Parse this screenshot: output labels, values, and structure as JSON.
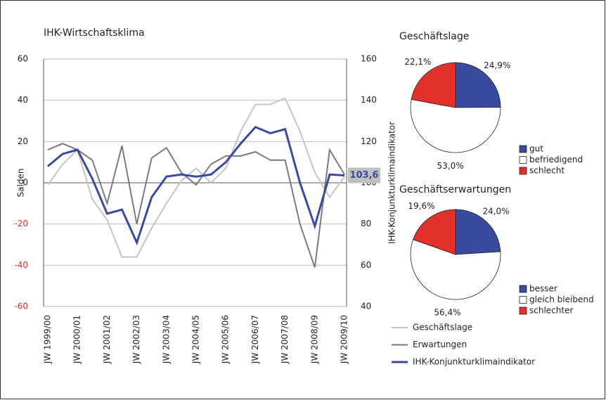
{
  "chart_data": [
    {
      "type": "line",
      "title": "IHK-Wirtschaftsklima",
      "ylabel": "Salden",
      "y2label": "IHK-Konjunkturklimaindikator",
      "categories": [
        "JW 1999/00",
        null,
        "JW 2000/01",
        null,
        "JW 2001/02",
        null,
        "JW 2002/03",
        null,
        "JW 2003/04",
        null,
        "JW 2004/05",
        null,
        "JW 2005/06",
        null,
        "JW 2006/07",
        null,
        "JW 2007/08",
        null,
        "JW 2008/09",
        null,
        "JW 2009/10"
      ],
      "ylim": [
        -60,
        60
      ],
      "yticks": [
        -60,
        -40,
        -20,
        0,
        20,
        40,
        60
      ],
      "y2lim": [
        40,
        160
      ],
      "y2ticks": [
        40,
        60,
        80,
        100,
        120,
        140,
        160
      ],
      "negative_tick_color": "#d8302a",
      "grid": true,
      "series": [
        {
          "name": "Geschäftslage",
          "color": "#c4c4c4",
          "values": [
            -1,
            9,
            16,
            -8,
            -18,
            -36,
            -36,
            -22,
            -10,
            1,
            7,
            0,
            7,
            25,
            38,
            38,
            41,
            25,
            5,
            -7,
            3
          ]
        },
        {
          "name": "Erwartungen",
          "color": "#7a7a7a",
          "values": [
            16,
            19,
            16,
            11,
            -10,
            18,
            -20,
            12,
            17,
            5,
            -1,
            9,
            13,
            13,
            15,
            11,
            11,
            -20,
            -41,
            16,
            4
          ]
        },
        {
          "name": "IHK-Konjunkturklimaindikator",
          "color": "#3a4b9f",
          "axis": "y2",
          "values": [
            108,
            114,
            116,
            102,
            85,
            87,
            71,
            93,
            103,
            104,
            103,
            104,
            110,
            119,
            127,
            124,
            126,
            100,
            79,
            104,
            103.6
          ],
          "value_labels": [
            null,
            null,
            null,
            null,
            null,
            null,
            null,
            null,
            null,
            null,
            null,
            null,
            null,
            null,
            null,
            null,
            null,
            null,
            null,
            null,
            "103,6"
          ]
        }
      ]
    },
    {
      "type": "pie",
      "title": "Geschäftslage",
      "categories": [
        "gut",
        "befriedigend",
        "schlecht"
      ],
      "values": [
        24.9,
        53.0,
        22.1
      ],
      "value_labels": [
        "24,9%",
        "53,0%",
        "22,1%"
      ],
      "colors": [
        "#3a4b9f",
        "#ffffff",
        "#e2302a"
      ]
    },
    {
      "type": "pie",
      "title": "Geschäftserwartungen",
      "categories": [
        "besser",
        "gleich bleibend",
        "schlechter"
      ],
      "values": [
        24.0,
        56.4,
        19.6
      ],
      "value_labels": [
        "24,0%",
        "56,4%",
        "19,6%"
      ],
      "colors": [
        "#3a4b9f",
        "#ffffff",
        "#e2302a"
      ]
    }
  ]
}
